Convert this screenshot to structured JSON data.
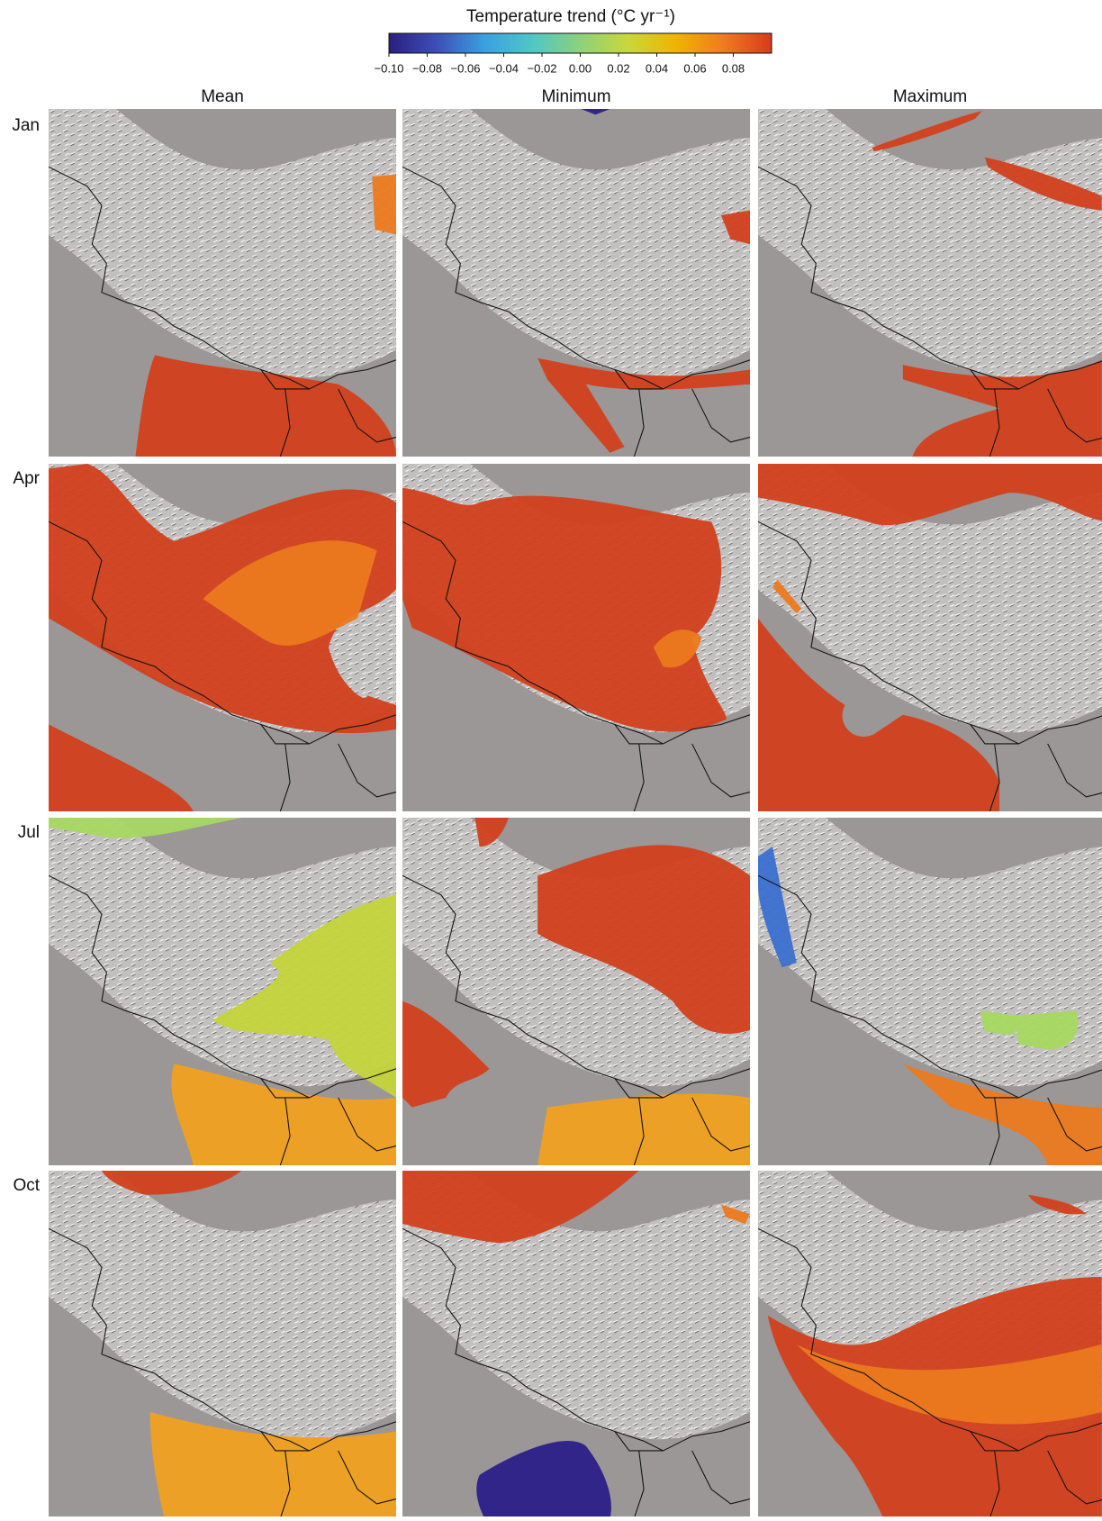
{
  "colorbar": {
    "title": "Temperature trend (°C yr⁻¹)",
    "clim": [
      -0.1,
      0.1
    ],
    "ticks": [
      {
        "value": -0.1,
        "label": "−0.10"
      },
      {
        "value": -0.08,
        "label": "−0.08"
      },
      {
        "value": -0.06,
        "label": "−0.06"
      },
      {
        "value": -0.04,
        "label": "−0.04"
      },
      {
        "value": -0.02,
        "label": "−0.02"
      },
      {
        "value": 0,
        "label": "0.00"
      },
      0.02,
      0.04,
      0.06,
      0.08
    ],
    "colors": [
      "#2a1f7e",
      "#3c4fb8",
      "#3aa0e0",
      "#4fc7c6",
      "#8dd17a",
      "#c8d83a",
      "#f0b400",
      "#f07a20",
      "#d83a1c"
    ]
  },
  "columns": [
    "Mean",
    "Minimum",
    "Maximum"
  ],
  "rows": [
    "Jan",
    "Apr",
    "Jul",
    "Oct"
  ]
}
